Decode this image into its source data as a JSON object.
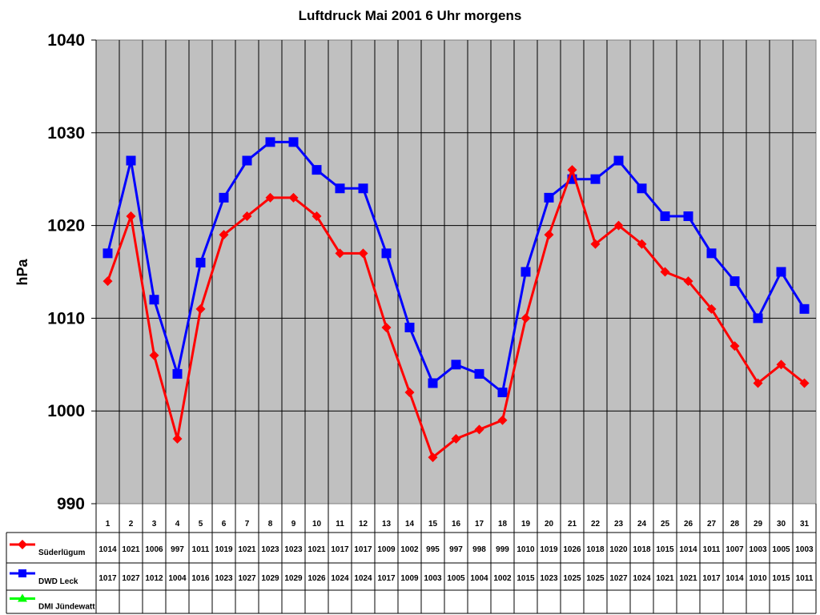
{
  "chart_data": {
    "type": "line",
    "title": "Luftdruck Mai 2001 6 Uhr morgens",
    "xlabel": "",
    "ylabel": "hPa",
    "ylim": [
      990,
      1040
    ],
    "yticks": [
      990,
      1000,
      1010,
      1020,
      1030,
      1040
    ],
    "grid": true,
    "legend_position": "data table (bottom)",
    "x": [
      1,
      2,
      3,
      4,
      5,
      6,
      7,
      8,
      9,
      10,
      11,
      12,
      13,
      14,
      15,
      16,
      17,
      18,
      19,
      20,
      21,
      22,
      23,
      24,
      25,
      26,
      27,
      28,
      29,
      30,
      31
    ],
    "series": [
      {
        "name": "Süderlügum",
        "color": "#ff0000",
        "marker": "diamond",
        "values": [
          1014,
          1021,
          1006,
          997,
          1011,
          1019,
          1021,
          1023,
          1023,
          1021,
          1017,
          1017,
          1009,
          1002,
          995,
          997,
          998,
          999,
          1010,
          1019,
          1026,
          1018,
          1020,
          1018,
          1015,
          1014,
          1011,
          1007,
          1003,
          1005,
          1003
        ]
      },
      {
        "name": "DWD Leck",
        "color": "#0000ff",
        "marker": "square",
        "values": [
          1017,
          1027,
          1012,
          1004,
          1016,
          1023,
          1027,
          1029,
          1029,
          1026,
          1024,
          1024,
          1017,
          1009,
          1003,
          1005,
          1004,
          1002,
          1015,
          1023,
          1025,
          1025,
          1027,
          1024,
          1021,
          1021,
          1017,
          1014,
          1010,
          1015,
          1011
        ]
      },
      {
        "name": "DMI Jündewatt",
        "color": "#00ff00",
        "marker": "triangle",
        "values": []
      }
    ]
  },
  "colors": {
    "plot_bg": "#c0c0c0",
    "grid": "#000000"
  }
}
